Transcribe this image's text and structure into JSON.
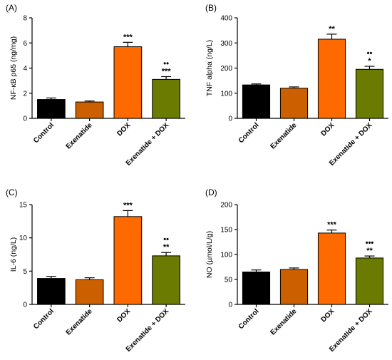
{
  "panels": [
    {
      "panel_label": "(A)"
    },
    {
      "panel_label": "(B)"
    },
    {
      "panel_label": "(C)"
    },
    {
      "panel_label": "(D)"
    }
  ],
  "chart_data": [
    {
      "type": "bar",
      "panel": "(A)",
      "title": "",
      "xlabel": "",
      "ylabel": "NF-κB p65 (ng/mg)",
      "ylim": [
        0,
        8
      ],
      "yticks": [
        0,
        2,
        4,
        6,
        8
      ],
      "categories": [
        "Control",
        "Exenatide",
        "DOX",
        "Exenatide + DOX"
      ],
      "values": [
        1.5,
        1.3,
        5.7,
        3.1
      ],
      "errors": [
        0.12,
        0.08,
        0.35,
        0.22
      ],
      "colors": [
        "#000000",
        "#cc5f00",
        "#ff6a00",
        "#6b7a00"
      ],
      "annotations": [
        [],
        [],
        [
          "***"
        ],
        [
          "••",
          "***"
        ]
      ],
      "grid": false
    },
    {
      "type": "bar",
      "panel": "(B)",
      "title": "",
      "xlabel": "",
      "ylabel": "TNF alpha (ng/L)",
      "ylim": [
        0,
        400
      ],
      "yticks": [
        0,
        100,
        200,
        300,
        400
      ],
      "categories": [
        "Control",
        "Exenatide",
        "DOX",
        "Exenatide + DOX"
      ],
      "values": [
        133,
        120,
        315,
        195
      ],
      "errors": [
        4,
        5,
        20,
        12
      ],
      "colors": [
        "#000000",
        "#cc5f00",
        "#ff6a00",
        "#6b7a00"
      ],
      "annotations": [
        [],
        [],
        [
          "**"
        ],
        [
          "••",
          "*"
        ]
      ],
      "grid": false
    },
    {
      "type": "bar",
      "panel": "(C)",
      "title": "",
      "xlabel": "",
      "ylabel": "IL-6 (ng/L)",
      "ylim": [
        0,
        15
      ],
      "yticks": [
        0,
        5,
        10,
        15
      ],
      "categories": [
        "Control",
        "Exenatide",
        "DOX",
        "Exenatide + DOX"
      ],
      "values": [
        3.9,
        3.7,
        13.2,
        7.3
      ],
      "errors": [
        0.3,
        0.3,
        0.9,
        0.5
      ],
      "colors": [
        "#000000",
        "#cc5f00",
        "#ff6a00",
        "#6b7a00"
      ],
      "annotations": [
        [],
        [],
        [
          "***"
        ],
        [
          "••",
          "**"
        ]
      ],
      "grid": false
    },
    {
      "type": "bar",
      "panel": "(D)",
      "title": "",
      "xlabel": "",
      "ylabel": "NO (µmol/L/g)",
      "ylim": [
        0,
        200
      ],
      "yticks": [
        0,
        50,
        100,
        150,
        200
      ],
      "categories": [
        "Control",
        "Exenatide",
        "DOX",
        "Exenatide + DOX"
      ],
      "values": [
        65,
        70,
        143,
        93
      ],
      "errors": [
        4,
        3,
        6,
        4
      ],
      "colors": [
        "#000000",
        "#cc5f00",
        "#ff6a00",
        "#6b7a00"
      ],
      "annotations": [
        [],
        [],
        [
          "***"
        ],
        [
          "•••",
          "**"
        ]
      ],
      "grid": false
    }
  ]
}
